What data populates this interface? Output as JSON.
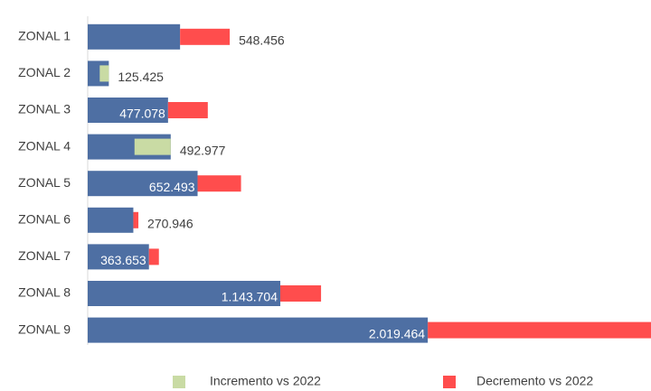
{
  "chart_data": {
    "type": "bar",
    "orientation": "horizontal",
    "categories": [
      "ZONAL 1",
      "ZONAL 2",
      "ZONAL 3",
      "ZONAL 4",
      "ZONAL 5",
      "ZONAL 6",
      "ZONAL 7",
      "ZONAL 8",
      "ZONAL 9"
    ],
    "values": [
      548456,
      125425,
      477078,
      492977,
      652493,
      270946,
      363653,
      1143704,
      2019464
    ],
    "value_labels": [
      "548.456",
      "125.425",
      "477.078",
      "492.977",
      "652.493",
      "270.946",
      "363.653",
      "1.143.704",
      "2.019.464"
    ],
    "label_positions": [
      "outside",
      "outside",
      "inside",
      "outside",
      "inside",
      "outside",
      "inside",
      "inside",
      "inside"
    ],
    "color": "#4e6fa3",
    "series": [
      {
        "name": "Incremento vs 2022",
        "color": "#c9dba4",
        "values": [
          null,
          54000,
          null,
          215000,
          null,
          null,
          null,
          null,
          null
        ]
      },
      {
        "name": "Decremento vs 2022",
        "color": "#ff4d4d",
        "values": [
          295000,
          null,
          236000,
          null,
          258000,
          30000,
          59000,
          242000,
          1326000
        ]
      }
    ],
    "xlim": [
      0,
      3345000
    ]
  }
}
